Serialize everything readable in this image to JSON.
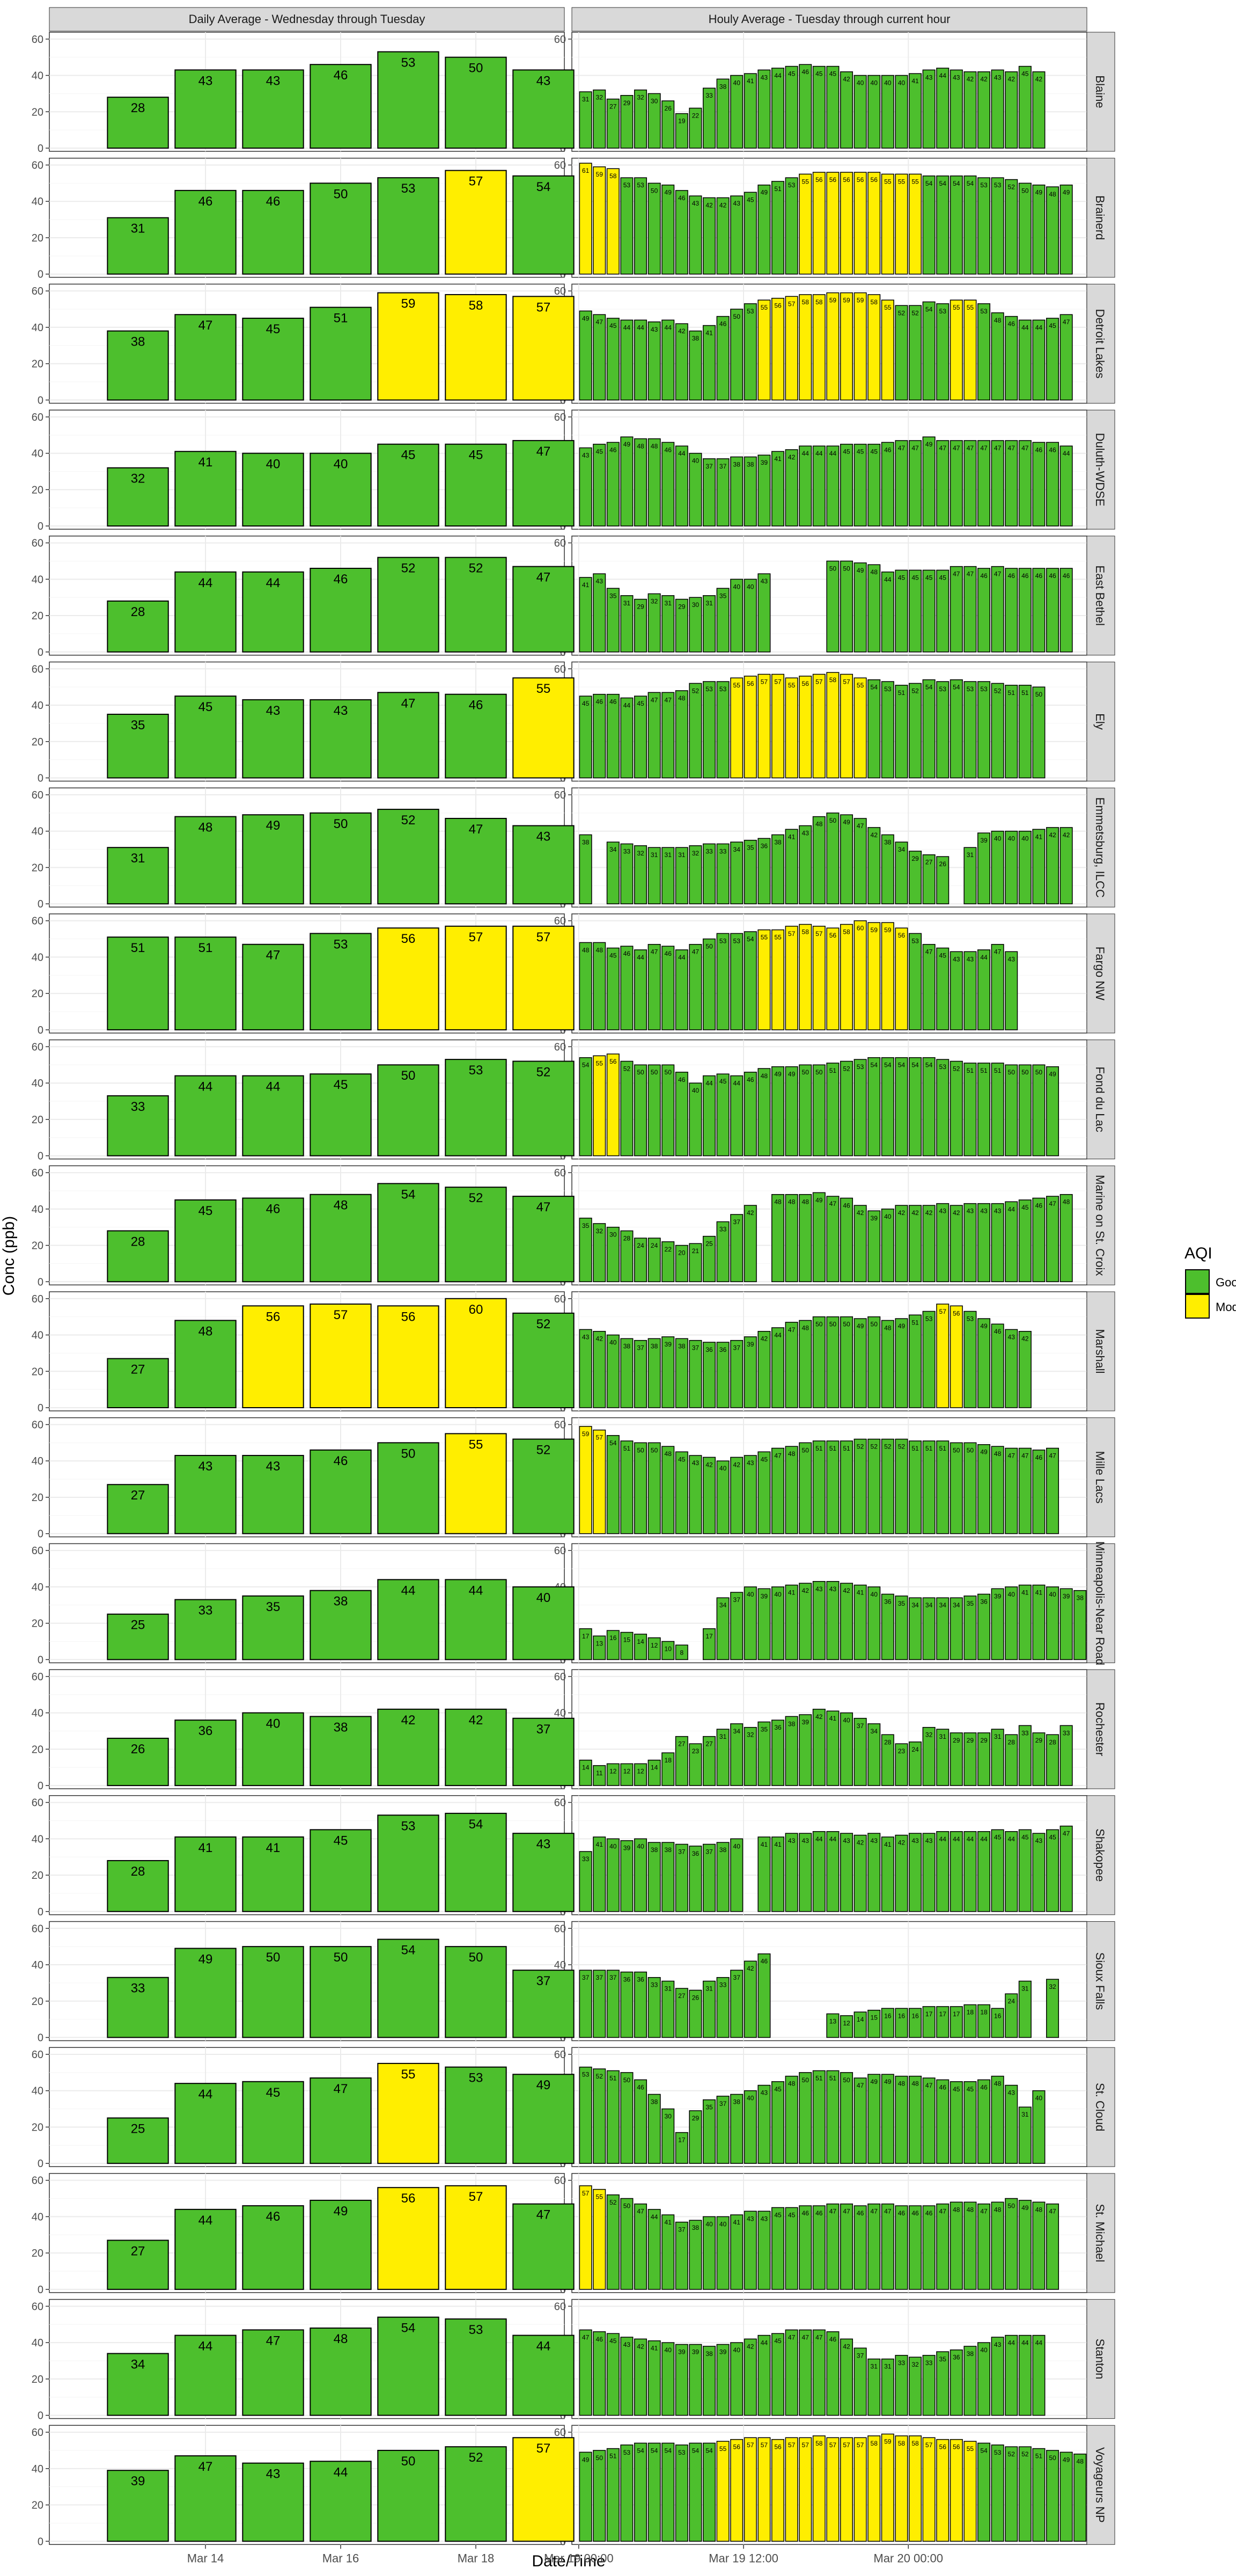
{
  "chart_data": {
    "type": "bar",
    "ylabel": "Conc (ppb)",
    "xlabel": "Date/Time",
    "ylim": [
      0,
      62
    ],
    "yticks": [
      0,
      20,
      40,
      60
    ],
    "panel_titles": [
      "Daily Average - Wednesday through Tuesday",
      "Houly Average - Tuesday through current hour"
    ],
    "daily_xticks": [
      {
        "label": "Mar 14",
        "pos": 2
      },
      {
        "label": "Mar 16",
        "pos": 4
      },
      {
        "label": "Mar 18",
        "pos": 6
      }
    ],
    "hourly_xticks": [
      {
        "label": "Mar 19 00:00",
        "pos": 0
      },
      {
        "label": "Mar 19 12:00",
        "pos": 12
      },
      {
        "label": "Mar 20 00:00",
        "pos": 24
      }
    ],
    "legend": {
      "title": "AQI",
      "placement": "right",
      "items": [
        {
          "label": "Good",
          "color": "#4dbf2d"
        },
        {
          "label": "Moderate",
          "color": "#ffee00"
        }
      ]
    },
    "colors": {
      "Good": "#4dbf2d",
      "Moderate": "#ffee00"
    },
    "moderate_threshold": 55,
    "sites": [
      {
        "name": "Blaine",
        "daily": [
          28,
          43,
          43,
          46,
          53,
          50,
          43
        ],
        "hourly": [
          31,
          32,
          27,
          29,
          32,
          30,
          26,
          19,
          22,
          33,
          38,
          40,
          41,
          43,
          44,
          45,
          46,
          45,
          45,
          42,
          40,
          40,
          40,
          40,
          41,
          43,
          44,
          43,
          42,
          42,
          43,
          42,
          45,
          42
        ]
      },
      {
        "name": "Brainerd",
        "daily": [
          31,
          46,
          46,
          50,
          53,
          57,
          54
        ],
        "hourly": [
          61,
          59,
          58,
          53,
          53,
          50,
          49,
          46,
          43,
          42,
          42,
          43,
          45,
          49,
          51,
          53,
          55,
          56,
          56,
          56,
          56,
          56,
          55,
          55,
          55,
          54,
          54,
          54,
          54,
          53,
          53,
          52,
          50,
          49,
          48,
          49
        ]
      },
      {
        "name": "Detroit Lakes",
        "daily": [
          38,
          47,
          45,
          51,
          59,
          58,
          57
        ],
        "hourly": [
          49,
          47,
          45,
          44,
          44,
          43,
          44,
          42,
          38,
          41,
          46,
          50,
          53,
          55,
          56,
          57,
          58,
          58,
          59,
          59,
          59,
          58,
          55,
          52,
          52,
          54,
          53,
          55,
          55,
          53,
          48,
          46,
          44,
          44,
          45,
          47
        ]
      },
      {
        "name": "Duluth-WDSE",
        "daily": [
          32,
          41,
          40,
          40,
          45,
          45,
          47
        ],
        "hourly": [
          43,
          45,
          46,
          49,
          48,
          48,
          46,
          44,
          40,
          37,
          37,
          38,
          38,
          39,
          41,
          42,
          44,
          44,
          44,
          45,
          45,
          45,
          46,
          47,
          47,
          49,
          47,
          47,
          47,
          47,
          47,
          47,
          47,
          46,
          46,
          44
        ]
      },
      {
        "name": "East Bethel",
        "daily": [
          28,
          44,
          44,
          46,
          52,
          52,
          47
        ],
        "hourly": [
          41,
          43,
          35,
          31,
          29,
          32,
          31,
          29,
          30,
          31,
          35,
          40,
          40,
          43,
          null,
          null,
          null,
          null,
          50,
          50,
          49,
          48,
          44,
          45,
          45,
          45,
          45,
          47,
          47,
          46,
          47,
          46,
          46,
          46,
          46,
          46
        ]
      },
      {
        "name": "Ely",
        "daily": [
          35,
          45,
          43,
          43,
          47,
          46,
          55
        ],
        "hourly": [
          45,
          46,
          46,
          44,
          45,
          47,
          47,
          48,
          52,
          53,
          53,
          55,
          56,
          57,
          57,
          55,
          56,
          57,
          58,
          57,
          55,
          54,
          53,
          51,
          52,
          54,
          53,
          54,
          53,
          53,
          52,
          51,
          51,
          50
        ]
      },
      {
        "name": "Emmetsburg, ILCC",
        "daily": [
          31,
          48,
          49,
          50,
          52,
          47,
          43
        ],
        "hourly": [
          38,
          null,
          34,
          33,
          32,
          31,
          31,
          31,
          32,
          33,
          33,
          34,
          35,
          36,
          38,
          41,
          43,
          48,
          50,
          49,
          47,
          42,
          38,
          34,
          29,
          27,
          26,
          null,
          31,
          39,
          40,
          40,
          40,
          41,
          42,
          42
        ]
      },
      {
        "name": "Fargo NW",
        "daily": [
          51,
          51,
          47,
          53,
          56,
          57,
          57
        ],
        "hourly": [
          48,
          48,
          45,
          46,
          44,
          47,
          46,
          44,
          47,
          50,
          53,
          53,
          54,
          55,
          55,
          57,
          58,
          57,
          56,
          58,
          60,
          59,
          59,
          56,
          53,
          47,
          45,
          43,
          43,
          44,
          47,
          43
        ]
      },
      {
        "name": "Fond du Lac",
        "daily": [
          33,
          44,
          44,
          45,
          50,
          53,
          52
        ],
        "hourly": [
          54,
          55,
          56,
          52,
          50,
          50,
          50,
          46,
          40,
          44,
          45,
          44,
          46,
          48,
          49,
          49,
          50,
          50,
          51,
          52,
          53,
          54,
          54,
          54,
          54,
          54,
          53,
          52,
          51,
          51,
          51,
          50,
          50,
          50,
          49
        ]
      },
      {
        "name": "Marine on St. Croix",
        "daily": [
          28,
          45,
          46,
          48,
          54,
          52,
          47
        ],
        "hourly": [
          35,
          32,
          30,
          28,
          24,
          24,
          22,
          20,
          21,
          25,
          33,
          37,
          42,
          null,
          48,
          48,
          48,
          49,
          47,
          46,
          42,
          39,
          40,
          42,
          42,
          42,
          43,
          42,
          43,
          43,
          43,
          44,
          45,
          46,
          47,
          48
        ]
      },
      {
        "name": "Marshall",
        "daily": [
          27,
          48,
          56,
          57,
          56,
          60,
          52
        ],
        "hourly": [
          43,
          42,
          40,
          38,
          37,
          38,
          39,
          38,
          37,
          36,
          36,
          37,
          39,
          42,
          44,
          47,
          48,
          50,
          50,
          50,
          49,
          50,
          48,
          49,
          51,
          53,
          57,
          56,
          53,
          49,
          46,
          43,
          42
        ]
      },
      {
        "name": "Mille Lacs",
        "daily": [
          27,
          43,
          43,
          46,
          50,
          55,
          52
        ],
        "hourly": [
          59,
          57,
          54,
          51,
          50,
          50,
          48,
          45,
          43,
          42,
          40,
          42,
          43,
          45,
          47,
          48,
          50,
          51,
          51,
          51,
          52,
          52,
          52,
          52,
          51,
          51,
          51,
          50,
          50,
          49,
          48,
          47,
          47,
          46,
          47
        ]
      },
      {
        "name": "Minneapolis-Near Road",
        "daily": [
          25,
          33,
          35,
          38,
          44,
          44,
          40
        ],
        "hourly": [
          17,
          13,
          16,
          15,
          14,
          12,
          10,
          8,
          null,
          17,
          34,
          37,
          40,
          39,
          40,
          41,
          42,
          43,
          43,
          42,
          41,
          40,
          36,
          35,
          34,
          34,
          34,
          34,
          35,
          36,
          39,
          40,
          41,
          41,
          40,
          39,
          38,
          37,
          39
        ]
      },
      {
        "name": "Rochester",
        "daily": [
          26,
          36,
          40,
          38,
          42,
          42,
          37
        ],
        "hourly": [
          14,
          11,
          12,
          12,
          12,
          14,
          18,
          27,
          23,
          27,
          31,
          34,
          32,
          35,
          36,
          38,
          39,
          42,
          41,
          40,
          37,
          34,
          28,
          23,
          24,
          32,
          31,
          29,
          29,
          29,
          31,
          28,
          33,
          29,
          28,
          33
        ]
      },
      {
        "name": "Shakopee",
        "daily": [
          28,
          41,
          41,
          45,
          53,
          54,
          43
        ],
        "hourly": [
          33,
          41,
          40,
          39,
          40,
          38,
          38,
          37,
          36,
          37,
          38,
          40,
          null,
          41,
          41,
          43,
          43,
          44,
          44,
          43,
          42,
          43,
          41,
          42,
          43,
          43,
          44,
          44,
          44,
          44,
          45,
          44,
          45,
          43,
          45,
          47
        ]
      },
      {
        "name": "Sioux Falls",
        "daily": [
          33,
          49,
          50,
          50,
          54,
          50,
          37
        ],
        "hourly": [
          37,
          37,
          37,
          36,
          36,
          33,
          31,
          27,
          26,
          31,
          33,
          37,
          42,
          46,
          null,
          null,
          null,
          null,
          13,
          12,
          14,
          15,
          16,
          16,
          16,
          17,
          17,
          17,
          18,
          18,
          16,
          24,
          31,
          null,
          32
        ]
      },
      {
        "name": "St. Cloud",
        "daily": [
          25,
          44,
          45,
          47,
          55,
          53,
          49
        ],
        "hourly": [
          53,
          52,
          51,
          50,
          46,
          38,
          30,
          17,
          29,
          35,
          37,
          38,
          40,
          43,
          45,
          48,
          50,
          51,
          51,
          50,
          47,
          49,
          49,
          48,
          48,
          47,
          46,
          45,
          45,
          46,
          48,
          43,
          31,
          40
        ]
      },
      {
        "name": "St. Michael",
        "daily": [
          27,
          44,
          46,
          49,
          56,
          57,
          47
        ],
        "hourly": [
          57,
          55,
          52,
          50,
          47,
          44,
          41,
          37,
          38,
          40,
          40,
          41,
          43,
          43,
          45,
          45,
          46,
          46,
          47,
          47,
          46,
          47,
          47,
          46,
          46,
          46,
          47,
          48,
          48,
          47,
          48,
          50,
          49,
          48,
          47
        ]
      },
      {
        "name": "Stanton",
        "daily": [
          34,
          44,
          47,
          48,
          54,
          53,
          44
        ],
        "hourly": [
          47,
          46,
          45,
          43,
          42,
          41,
          40,
          39,
          39,
          38,
          39,
          40,
          42,
          44,
          45,
          47,
          47,
          47,
          46,
          42,
          37,
          31,
          31,
          33,
          32,
          33,
          35,
          36,
          38,
          40,
          43,
          44,
          44,
          44
        ]
      },
      {
        "name": "Voyageurs NP",
        "daily": [
          39,
          47,
          43,
          44,
          50,
          52,
          57
        ],
        "hourly": [
          49,
          50,
          51,
          53,
          54,
          54,
          54,
          53,
          54,
          54,
          55,
          56,
          57,
          57,
          56,
          57,
          57,
          58,
          57,
          57,
          57,
          58,
          59,
          58,
          58,
          57,
          56,
          56,
          55,
          54,
          53,
          52,
          52,
          51,
          50,
          49,
          48,
          47,
          46
        ]
      }
    ]
  }
}
